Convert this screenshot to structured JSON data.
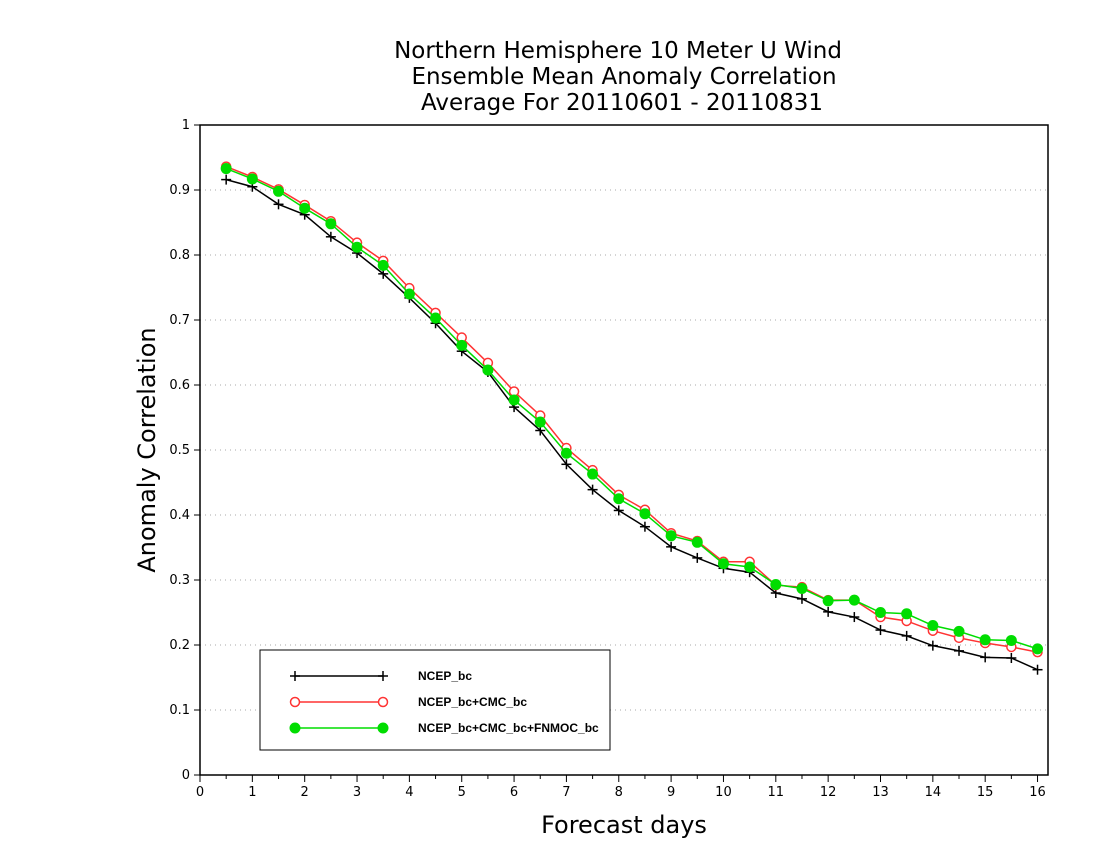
{
  "chart_data": {
    "type": "line",
    "title_lines": [
      "Northern Hemisphere 10 Meter U Wind",
      "Ensemble Mean Anomaly Correlation",
      "Average For 20110601 - 20110831"
    ],
    "xlabel": "Forecast days",
    "ylabel": "Anomaly Correlation",
    "xlim": [
      0,
      16.2
    ],
    "ylim": [
      0,
      1
    ],
    "xticks": [
      "0",
      "1",
      "2",
      "3",
      "4",
      "5",
      "6",
      "7",
      "8",
      "9",
      "10",
      "11",
      "12",
      "13",
      "14",
      "15",
      "16"
    ],
    "yticks": [
      "0",
      "0.1",
      "0.2",
      "0.3",
      "0.4",
      "0.5",
      "0.6",
      "0.7",
      "0.8",
      "0.9",
      "1"
    ],
    "grid": "horizontal dotted",
    "legend_position": "bottom-left",
    "x": [
      0.5,
      1,
      1.5,
      2,
      2.5,
      3,
      3.5,
      4,
      4.5,
      5,
      5.5,
      6,
      6.5,
      7,
      7.5,
      8,
      8.5,
      9,
      9.5,
      10,
      10.5,
      11,
      11.5,
      12,
      12.5,
      13,
      13.5,
      14,
      14.5,
      15,
      15.5,
      16
    ],
    "series": [
      {
        "name": "NCEP_bc",
        "color": "#000000",
        "marker": "plus",
        "values": [
          0.916,
          0.905,
          0.878,
          0.862,
          0.828,
          0.803,
          0.771,
          0.734,
          0.695,
          0.652,
          0.62,
          0.566,
          0.53,
          0.478,
          0.439,
          0.407,
          0.382,
          0.351,
          0.334,
          0.318,
          0.312,
          0.28,
          0.271,
          0.251,
          0.243,
          0.223,
          0.214,
          0.199,
          0.191,
          0.181,
          0.18,
          0.162
        ]
      },
      {
        "name": "NCEP_bc+CMC_bc",
        "color": "#ff3333",
        "marker": "open-circle",
        "values": [
          0.936,
          0.92,
          0.901,
          0.877,
          0.852,
          0.819,
          0.791,
          0.749,
          0.711,
          0.673,
          0.634,
          0.59,
          0.553,
          0.503,
          0.469,
          0.431,
          0.408,
          0.372,
          0.36,
          0.328,
          0.328,
          0.292,
          0.289,
          0.269,
          0.269,
          0.243,
          0.237,
          0.222,
          0.211,
          0.203,
          0.197,
          0.189
        ]
      },
      {
        "name": "NCEP_bc+CMC_bc+FNMOC_bc",
        "color": "#00dd00",
        "marker": "filled-circle",
        "values": [
          0.933,
          0.917,
          0.898,
          0.872,
          0.848,
          0.812,
          0.784,
          0.74,
          0.703,
          0.661,
          0.623,
          0.577,
          0.543,
          0.495,
          0.463,
          0.425,
          0.402,
          0.368,
          0.358,
          0.325,
          0.32,
          0.293,
          0.287,
          0.268,
          0.269,
          0.25,
          0.248,
          0.23,
          0.221,
          0.208,
          0.207,
          0.194
        ]
      }
    ]
  }
}
